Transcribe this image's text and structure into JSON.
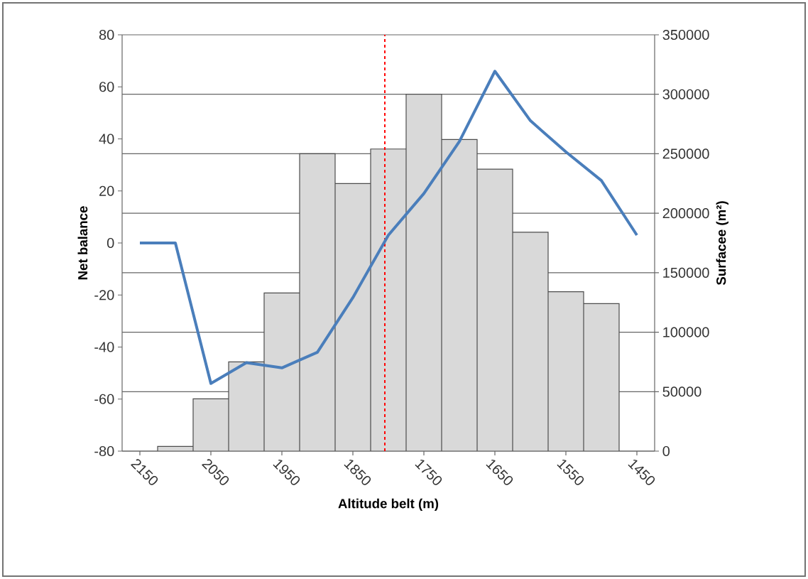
{
  "chart_data": {
    "type": "bar",
    "xlabel": "Altitude belt (m)",
    "ylabel": "Net balance",
    "y2label": "Surfacee (m²)",
    "x": [
      2150,
      2100,
      2050,
      2000,
      1950,
      1900,
      1850,
      1800,
      1750,
      1700,
      1650,
      1600,
      1550,
      1500,
      1450
    ],
    "xlim": [
      2175,
      1425
    ],
    "xticks": [
      2150,
      2050,
      1950,
      1850,
      1750,
      1650,
      1550,
      1450
    ],
    "ylim": [
      -80,
      80
    ],
    "yticks": [
      -80,
      -60,
      -40,
      -20,
      0,
      20,
      40,
      60,
      80
    ],
    "y2lim": [
      0,
      350000
    ],
    "y2ticks": [
      0,
      50000,
      100000,
      150000,
      200000,
      250000,
      300000,
      350000
    ],
    "grid": "y",
    "series": [
      {
        "axis": "y2",
        "color": "#d9d9d9",
        "values": [
          null,
          4000,
          44000,
          75000,
          133000,
          250000,
          225000,
          254000,
          300000,
          262000,
          237000,
          184000,
          134000,
          124000,
          null
        ]
      },
      {
        "type": "line",
        "color": "#4a7ebb",
        "values": [
          0,
          0,
          -54,
          -46,
          -48,
          -42,
          -21,
          3,
          19,
          39,
          66,
          47,
          35,
          24,
          3
        ]
      }
    ],
    "ref_lines": [
      {
        "axis": "x",
        "value": 1805,
        "color": "#ff0000",
        "line_style": "dashed"
      }
    ]
  }
}
